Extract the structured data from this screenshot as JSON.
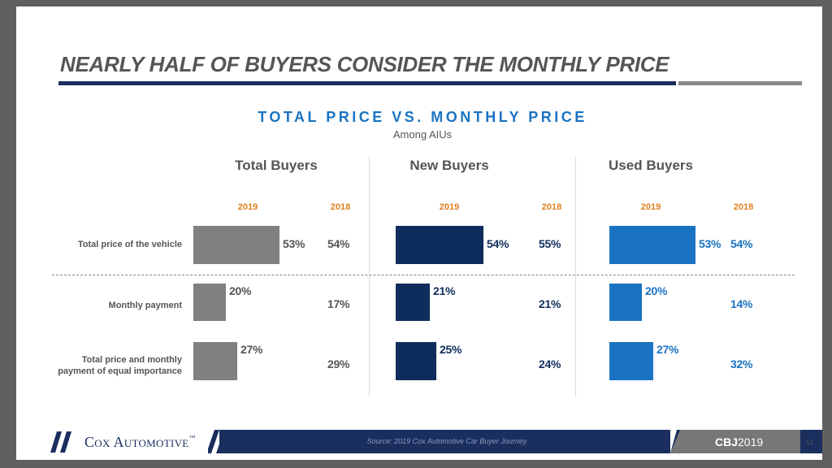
{
  "slide": {
    "title": "NEARLY HALF OF BUYERS CONSIDER THE MONTHLY PRICE",
    "logo": "Cox Automotive",
    "logo_tm": "™",
    "source": "Source: 2019 Cox Automotive Car Buyer Journey",
    "badge_bold": "CBJ",
    "badge_year": "2019",
    "page_number": "12",
    "colors": {
      "title_gray": "#555555",
      "accent_blue": "#1a73c2",
      "navy": "#1a2f5e",
      "orange": "#e07f20"
    }
  },
  "chart_data": {
    "type": "bar",
    "title": "TOTAL PRICE VS. MONTHLY PRICE",
    "subtitle": "Among AIUs",
    "year_labels": {
      "current": "2019",
      "previous": "2018"
    },
    "categories": [
      "Total price of the vehicle",
      "Monthly payment",
      "Total price and monthly payment of equal importance"
    ],
    "category_lines": [
      [
        "Total price of the vehicle"
      ],
      [
        "Monthly payment"
      ],
      [
        "Total price and monthly",
        "payment of equal importance"
      ]
    ],
    "unit": "%",
    "groups": [
      {
        "name": "Total Buyers",
        "color": "#808080",
        "values_2019": [
          53,
          20,
          27
        ],
        "values_2018": [
          54,
          17,
          29
        ]
      },
      {
        "name": "New Buyers",
        "color": "#0f2d5c",
        "values_2019": [
          54,
          21,
          25
        ],
        "values_2018": [
          55,
          21,
          24
        ]
      },
      {
        "name": "Used Buyers",
        "color": "#1a73c2",
        "values_2019": [
          53,
          20,
          27
        ],
        "values_2018": [
          54,
          14,
          32
        ]
      }
    ]
  }
}
